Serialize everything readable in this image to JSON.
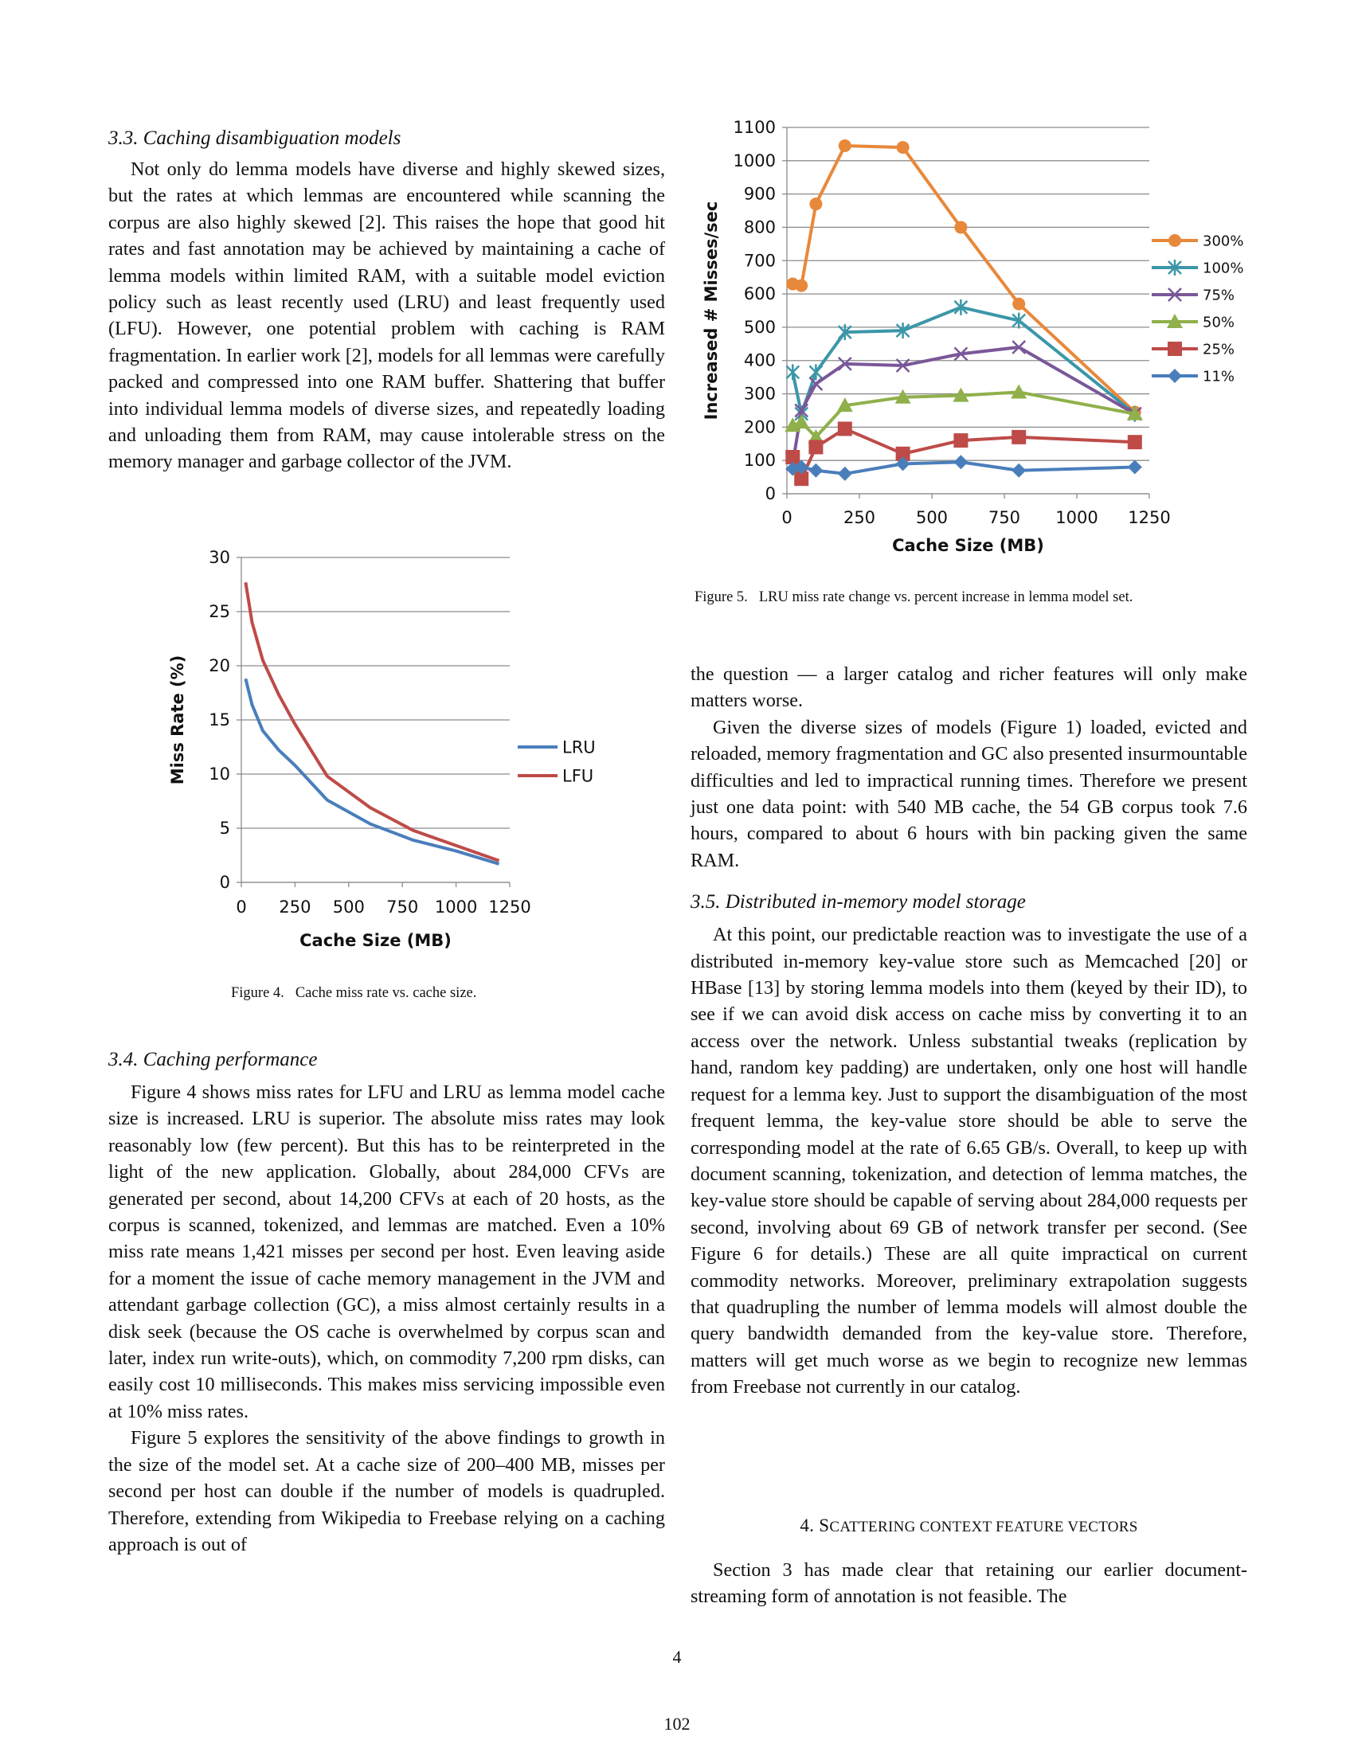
{
  "section_3_3": {
    "heading": "3.3.  Caching disambiguation models",
    "para1": "Not only do lemma models have diverse and highly skewed sizes, but the rates at which lemmas are encountered while scanning the corpus are also highly skewed [2]. This raises the hope that good hit rates and fast annotation may be achieved by maintaining a cache of lemma models within limited RAM, with a suitable model eviction policy such as least recently used (LRU) and least frequently used (LFU). However, one potential problem with caching is RAM fragmentation. In earlier work [2], models for all lemmas were carefully packed and compressed into one RAM buffer. Shattering that buffer into individual lemma models of diverse sizes, and repeatedly loading and unloading them from RAM, may cause intolerable stress on the memory manager and garbage collector of the JVM."
  },
  "figure4": {
    "label": "Figure 4.",
    "caption": "Cache miss rate vs. cache size."
  },
  "section_3_4": {
    "heading": "3.4.  Caching performance",
    "para1": "Figure 4 shows miss rates for LFU and LRU as lemma model cache size is increased. LRU is superior. The absolute miss rates may look reasonably low (few percent). But this has to be reinterpreted in the light of the new application. Globally, about 284,000 CFVs are generated per second, about 14,200 CFVs at each of 20 hosts, as the corpus is scanned, tokenized, and lemmas are matched. Even a 10% miss rate means 1,421 misses per second per host. Even leaving aside for a moment the issue of cache memory management in the JVM and attendant garbage collection (GC), a miss almost certainly results in a disk seek (because the OS cache is overwhelmed by corpus scan and later, index run write-outs), which, on commodity 7,200 rpm disks, can easily cost 10 milliseconds. This makes miss servicing impossible even at 10% miss rates.",
    "para2": "Figure 5 explores the sensitivity of the above findings to growth in the size of the model set. At a cache size of 200–400 MB, misses per second per host can double if the number of models is quadrupled. Therefore, extending from Wikipedia to Freebase relying on a caching approach is out of"
  },
  "figure5": {
    "label": "Figure 5.",
    "caption": "LRU miss rate change vs. percent increase in lemma model set."
  },
  "right_column": {
    "para_cont": "the question — a larger catalog and richer features will only make matters worse.",
    "para2": "Given the diverse sizes of models (Figure 1) loaded, evicted and reloaded, memory fragmentation and GC also presented insurmountable difficulties and led to impractical running times. Therefore we present just one data point: with 540 MB cache, the 54 GB corpus took 7.6 hours, compared to about 6 hours with bin packing given the same RAM.",
    "section_3_5_heading": "3.5.  Distributed in-memory model storage",
    "section_3_5_para": "At this point, our predictable reaction was to investigate the use of a distributed in-memory key-value store such as Memcached [20] or HBase [13] by storing lemma models into them (keyed by their ID), to see if we can avoid disk access on cache miss by converting it to an access over the network. Unless substantial tweaks (replication by hand, random key padding) are undertaken, only one host will handle request for a lemma key. Just to support the disambiguation of the most frequent lemma, the key-value store should be able to serve the corresponding model at the rate of 6.65 GB/s. Overall, to keep up with document scanning, tokenization, and detection of lemma matches, the key-value store should be capable of serving about 284,000 requests per second, involving about 69 GB of network transfer per second. (See Figure 6 for details.) These are all quite impractical on current commodity networks. Moreover, preliminary extrapolation suggests that quadrupling the number of lemma models will almost double the query bandwidth demanded from the key-value store. Therefore, matters will get much worse as we begin to recognize new lemmas from Freebase not currently in our catalog.",
    "section_4_num": "4.",
    "section_4_first": "S",
    "section_4_rest": "CATTERING CONTEXT FEATURE VECTORS",
    "section_4_para": "Section 3 has made clear that retaining our earlier document-streaming form of annotation is not feasible. The"
  },
  "page_number": "4",
  "footer_number": "102",
  "chart_data": [
    {
      "type": "line",
      "xlabel": "Cache Size (MB)",
      "ylabel": "Miss Rate (%)",
      "xlim": [
        0,
        1250
      ],
      "ylim": [
        0,
        30
      ],
      "xticks": [
        0,
        250,
        500,
        750,
        1000,
        1250
      ],
      "yticks": [
        0,
        5,
        10,
        15,
        20,
        25,
        30
      ],
      "grid": "horizontal",
      "legend": "right",
      "series": [
        {
          "name": "LRU",
          "color": "#4a7ebb",
          "x": [
            20,
            50,
            100,
            175,
            250,
            400,
            600,
            800,
            1000,
            1200
          ],
          "y": [
            18.8,
            16.4,
            14.0,
            12.2,
            10.8,
            7.6,
            5.4,
            3.9,
            2.9,
            1.7
          ]
        },
        {
          "name": "LFU",
          "color": "#be4b48",
          "x": [
            20,
            50,
            100,
            175,
            250,
            400,
            600,
            800,
            1000,
            1200
          ],
          "y": [
            27.7,
            24.0,
            20.5,
            17.3,
            14.6,
            9.8,
            6.9,
            4.8,
            3.4,
            2.0
          ]
        }
      ]
    },
    {
      "type": "line",
      "xlabel": "Cache Size (MB)",
      "ylabel": "Increased # Misses/sec",
      "xlim": [
        0,
        1250
      ],
      "ylim": [
        0,
        1100
      ],
      "xticks": [
        0,
        250,
        500,
        750,
        1000,
        1250
      ],
      "yticks": [
        0,
        100,
        200,
        300,
        400,
        500,
        600,
        700,
        800,
        900,
        1000,
        1100
      ],
      "grid": "horizontal",
      "legend": "right",
      "series": [
        {
          "name": "300%",
          "color": "#e8883a",
          "marker": "circle",
          "x": [
            20,
            50,
            100,
            200,
            400,
            600,
            800,
            1200
          ],
          "y": [
            630,
            625,
            870,
            1045,
            1040,
            800,
            570,
            245
          ]
        },
        {
          "name": "100%",
          "color": "#3b97a8",
          "marker": "star",
          "x": [
            20,
            50,
            100,
            200,
            400,
            600,
            800,
            1200
          ],
          "y": [
            365,
            240,
            365,
            485,
            490,
            560,
            520,
            240
          ]
        },
        {
          "name": "75%",
          "color": "#7a5799",
          "marker": "x",
          "x": [
            20,
            50,
            100,
            200,
            400,
            600,
            800,
            1200
          ],
          "y": [
            90,
            250,
            330,
            390,
            385,
            420,
            440,
            240
          ]
        },
        {
          "name": "50%",
          "color": "#8fb04a",
          "marker": "triangle",
          "x": [
            20,
            50,
            100,
            200,
            400,
            600,
            800,
            1200
          ],
          "y": [
            205,
            215,
            170,
            265,
            290,
            295,
            305,
            240
          ]
        },
        {
          "name": "25%",
          "color": "#be4b48",
          "marker": "square",
          "x": [
            20,
            50,
            100,
            200,
            400,
            600,
            800,
            1200
          ],
          "y": [
            110,
            45,
            140,
            195,
            120,
            160,
            170,
            155
          ]
        },
        {
          "name": "11%",
          "color": "#4a7ebb",
          "marker": "diamond",
          "x": [
            20,
            50,
            100,
            200,
            400,
            600,
            800,
            1200
          ],
          "y": [
            75,
            80,
            70,
            60,
            90,
            95,
            70,
            80
          ]
        }
      ]
    }
  ]
}
